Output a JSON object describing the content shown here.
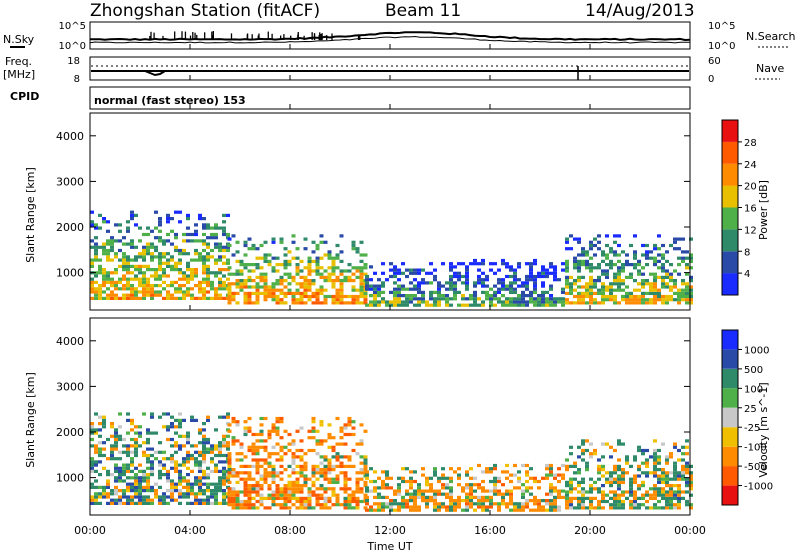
{
  "header": {
    "station": "Zhongshan Station (fitACF)",
    "beam": "Beam 11",
    "date": "14/Aug/2013"
  },
  "strip_labels": {
    "nsky": "N.Sky",
    "nsearch": "N.Search",
    "freq_line1": "Freq.",
    "freq_line2": "[MHz]",
    "nave": "Nave",
    "cpid": "CPID",
    "cpid_value": "normal (fast stereo) 153",
    "noise_top": "10^5",
    "noise_bottom": "10^0",
    "freq_top": "18",
    "freq_bottom": "8",
    "nave_top": "60",
    "nave_bottom": "0"
  },
  "axes": {
    "ylabel": "Slant Range [km]",
    "xlabel": "Time UT",
    "y_ticks": [
      "1000",
      "2000",
      "3000",
      "4000"
    ],
    "x_ticks": [
      "00:00",
      "04:00",
      "08:00",
      "12:00",
      "16:00",
      "20:00",
      "00:00"
    ]
  },
  "power_bar": {
    "label": "Power [dB]",
    "ticks": [
      "4",
      "8",
      "12",
      "16",
      "20",
      "24",
      "28"
    ],
    "colors": [
      "#1a2bff",
      "#2a4aa8",
      "#2e8a68",
      "#4fb04a",
      "#e8c000",
      "#ff8c00",
      "#ff5a00",
      "#e81010"
    ]
  },
  "velocity_bar": {
    "label": "Velocity [m s^-1]",
    "ticks": [
      "-1000",
      "-500",
      "-100",
      "-25",
      "25",
      "100",
      "500",
      "1000"
    ],
    "colors": [
      "#e81010",
      "#ff5a00",
      "#ff8c00",
      "#f0c000",
      "#c8c8c8",
      "#4fb04a",
      "#2e8a68",
      "#2a4aa8",
      "#1a2bff"
    ]
  },
  "chart_data": [
    {
      "type": "heatmap",
      "title": "Power",
      "xlabel": "Time UT",
      "ylabel": "Slant Range [km]",
      "x_range_hours": [
        0,
        24
      ],
      "y_range_km": [
        180,
        4500
      ],
      "colorbar": {
        "label": "Power [dB]",
        "range": [
          0,
          32
        ]
      },
      "echo_regions": [
        {
          "t_start": 0.0,
          "t_end": 5.5,
          "r_min": 400,
          "r_max": 2300,
          "typical_value": 20
        },
        {
          "t_start": 5.5,
          "t_end": 11.0,
          "r_min": 300,
          "r_max": 1800,
          "typical_value": 22
        },
        {
          "t_start": 11.0,
          "t_end": 15.0,
          "r_min": 250,
          "r_max": 1200,
          "typical_value": 14
        },
        {
          "t_start": 15.0,
          "t_end": 19.0,
          "r_min": 250,
          "r_max": 1300,
          "typical_value": 12
        },
        {
          "t_start": 19.0,
          "t_end": 24.0,
          "r_min": 300,
          "r_max": 1800,
          "typical_value": 18
        }
      ]
    },
    {
      "type": "heatmap",
      "title": "Velocity",
      "xlabel": "Time UT",
      "ylabel": "Slant Range [km]",
      "x_range_hours": [
        0,
        24
      ],
      "y_range_km": [
        180,
        4500
      ],
      "colorbar": {
        "label": "Velocity [m s^-1]",
        "range": [
          -1000,
          1000
        ]
      },
      "echo_regions": [
        {
          "t_start": 0.0,
          "t_end": 5.5,
          "r_min": 400,
          "r_max": 2400,
          "typical_value": 200
        },
        {
          "t_start": 5.5,
          "t_end": 11.0,
          "r_min": 300,
          "r_max": 2300,
          "typical_value": -300
        },
        {
          "t_start": 11.0,
          "t_end": 15.0,
          "r_min": 250,
          "r_max": 1200,
          "typical_value": -100
        },
        {
          "t_start": 15.0,
          "t_end": 19.0,
          "r_min": 250,
          "r_max": 1300,
          "typical_value": -200
        },
        {
          "t_start": 19.0,
          "t_end": 24.0,
          "r_min": 300,
          "r_max": 1800,
          "typical_value": 100
        }
      ]
    }
  ]
}
